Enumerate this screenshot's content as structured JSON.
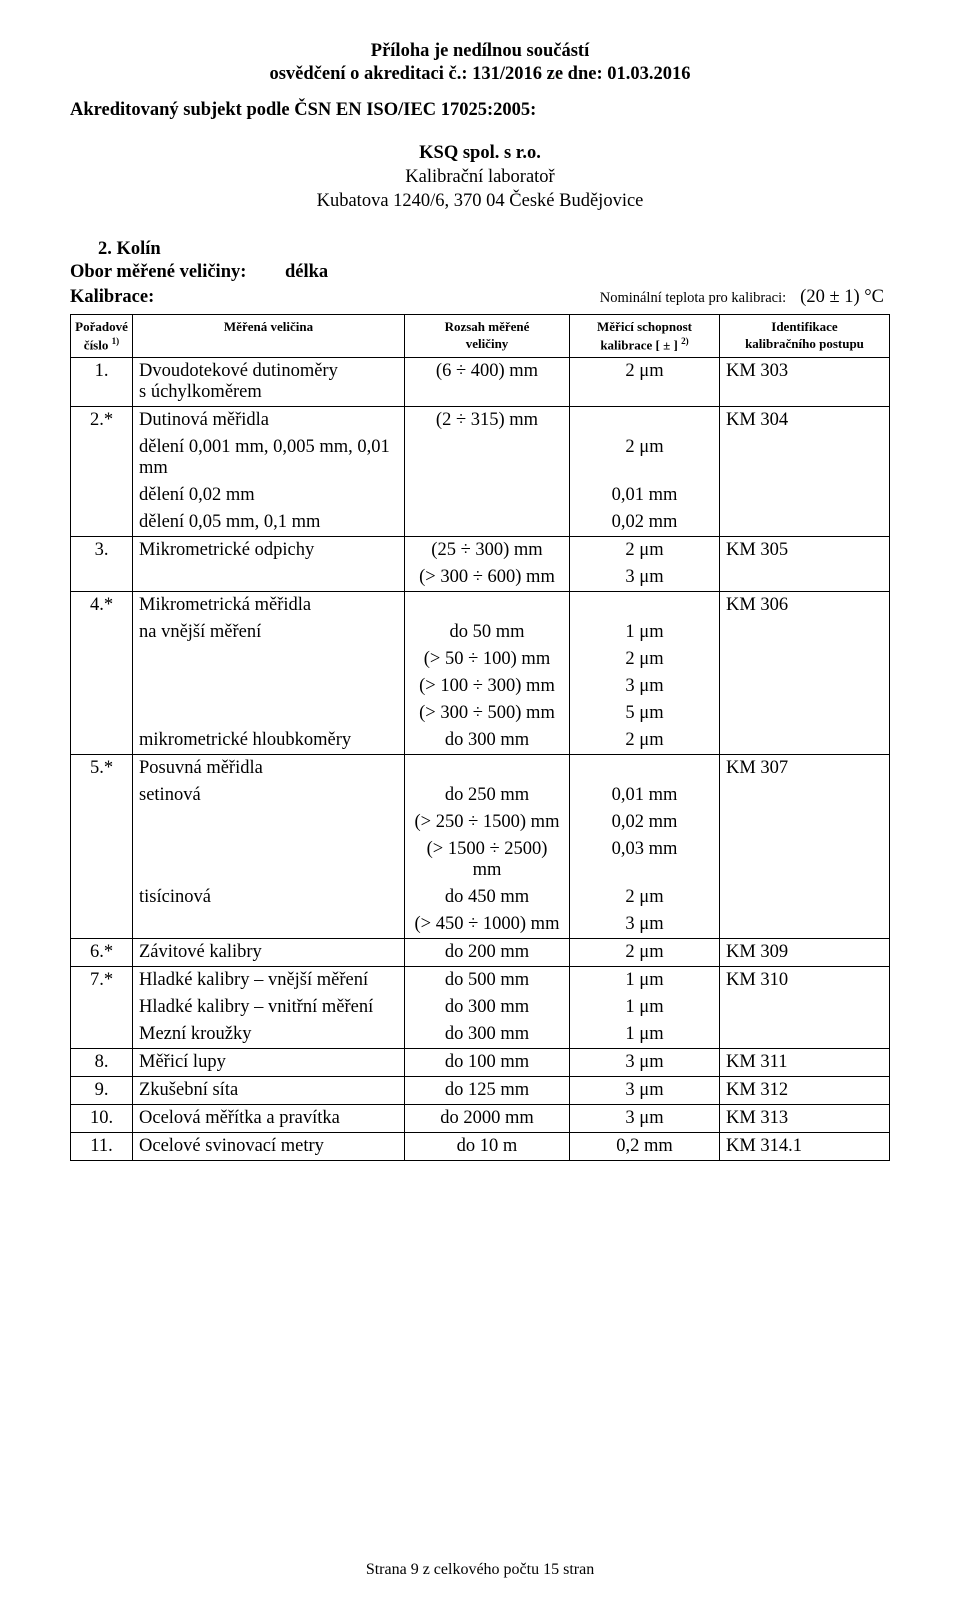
{
  "header": {
    "line1": "Příloha je nedílnou součástí",
    "line2": "osvědčení o akreditaci č.: 131/2016  ze dne: 01.03.2016"
  },
  "accredited": "Akreditovaný subjekt podle ČSN EN ISO/IEC 17025:2005:",
  "org": {
    "name": "KSQ spol. s r.o.",
    "lab": "Kalibrační laboratoř",
    "address": "Kubatova 1240/6, 370 04 České Budějovice"
  },
  "section": {
    "num_and_location": "2.   Kolín",
    "quantity_label": "Obor měřené veličiny:",
    "quantity_value": "délka",
    "calib_label": "Kalibrace:",
    "nominal_text": "Nominální teplota pro kalibraci:",
    "temp": "(20 ± 1) °C"
  },
  "columns": {
    "c1a": "Pořadové",
    "c1b": "číslo ",
    "c1sup": "1)",
    "c2": "Měřená veličina",
    "c3a": "Rozsah měřené",
    "c3b": "veličiny",
    "c4a": "Měřicí schopnost",
    "c4b": "kalibrace [ ± ] ",
    "c4sup": "2)",
    "c5a": "Identifikace",
    "c5b": "kalibračního postupu"
  },
  "rows": [
    {
      "idx": "1.",
      "name": "Dvoudotekové dutinoměry s úchylkoměrem",
      "range": "(6 ÷ 400) mm",
      "cap": "2 μm",
      "id": "KM 303"
    },
    {
      "idx": "2.*",
      "name": "Dutinová měřidla",
      "range": "(2 ÷ 315) mm",
      "cap": "",
      "id": "KM 304",
      "subs": [
        {
          "name": "dělení 0,001 mm, 0,005 mm, 0,01 mm",
          "range": "",
          "cap": "2 μm"
        },
        {
          "name": "dělení 0,02 mm",
          "range": "",
          "cap": "0,01 mm"
        },
        {
          "name": "dělení 0,05 mm, 0,1 mm",
          "range": "",
          "cap": "0,02 mm"
        }
      ]
    },
    {
      "idx": "3.",
      "name": "Mikrometrické odpichy",
      "range": "(25 ÷ 300) mm",
      "cap": "2 μm",
      "id": "KM 305",
      "subs": [
        {
          "name": "",
          "range": "(> 300 ÷ 600) mm",
          "cap": "3 μm"
        }
      ]
    },
    {
      "idx": "4.*",
      "name": "Mikrometrická měřidla",
      "range": "",
      "cap": "",
      "id": "KM 306",
      "subs": [
        {
          "name": "na vnější měření",
          "range": "do 50 mm",
          "cap": "1 μm"
        },
        {
          "name": "",
          "range": "(> 50 ÷ 100) mm",
          "cap": "2 μm"
        },
        {
          "name": "",
          "range": "(> 100 ÷ 300) mm",
          "cap": "3 μm"
        },
        {
          "name": "",
          "range": "(> 300 ÷ 500) mm",
          "cap": "5 μm"
        },
        {
          "name": "mikrometrické hloubkoměry",
          "range": "do 300 mm",
          "cap": "2 μm"
        }
      ]
    },
    {
      "idx": "5.*",
      "name": "Posuvná měřidla",
      "range": "",
      "cap": "",
      "id": "KM 307",
      "subs": [
        {
          "name": "setinová",
          "range": "do 250 mm",
          "cap": "0,01 mm"
        },
        {
          "name": "",
          "range": "(> 250 ÷ 1500) mm",
          "cap": "0,02 mm"
        },
        {
          "name": "",
          "range": "(> 1500 ÷ 2500) mm",
          "cap": "0,03 mm"
        },
        {
          "name": "tisícinová",
          "range": "do 450 mm",
          "cap": "2 μm"
        },
        {
          "name": "",
          "range": "(> 450 ÷ 1000) mm",
          "cap": "3 μm"
        }
      ]
    },
    {
      "idx": "6.*",
      "name": "Závitové kalibry",
      "range": "do 200 mm",
      "cap": "2 μm",
      "id": "KM 309"
    },
    {
      "idx": "7.*",
      "name": "Hladké kalibry – vnější měření",
      "range": "do 500 mm",
      "cap": "1 μm",
      "id": "KM 310",
      "subs": [
        {
          "name": "Hladké kalibry – vnitřní měření",
          "range": "do 300 mm",
          "cap": "1 μm"
        },
        {
          "name": "Mezní kroužky",
          "range": "do 300 mm",
          "cap": "1 μm"
        }
      ]
    },
    {
      "idx": "8.",
      "name": "Měřicí lupy",
      "range": "do 100 mm",
      "cap": "3 μm",
      "id": "KM 311"
    },
    {
      "idx": "9.",
      "name": "Zkušební síta",
      "range": "do 125 mm",
      "cap": "3 μm",
      "id": "KM 312"
    },
    {
      "idx": "10.",
      "name": "Ocelová měřítka a pravítka",
      "range": "do 2000 mm",
      "cap": "3 μm",
      "id": "KM 313"
    },
    {
      "idx": "11.",
      "name": "Ocelové svinovací metry",
      "range": "do 10 m",
      "cap": "0,2 mm",
      "id": "KM 314.1"
    }
  ],
  "footer": "Strana 9 z celkového počtu 15 stran"
}
